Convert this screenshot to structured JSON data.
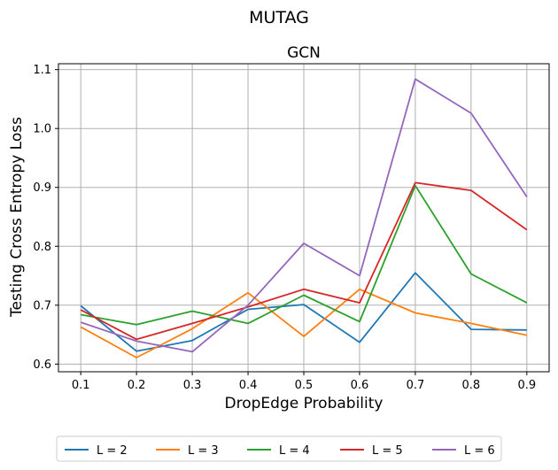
{
  "figure": {
    "suptitle": "MUTAG"
  },
  "chart_data": {
    "type": "line",
    "title": "GCN",
    "xlabel": "DropEdge Probability",
    "ylabel": "Testing Cross Entropy Loss",
    "x": [
      0.1,
      0.2,
      0.3,
      0.4,
      0.5,
      0.6,
      0.7,
      0.8,
      0.9
    ],
    "x_ticks": [
      "0.1",
      "0.2",
      "0.3",
      "0.4",
      "0.5",
      "0.6",
      "0.7",
      "0.8",
      "0.9"
    ],
    "xlim": [
      0.06,
      0.94
    ],
    "ylim": [
      0.587,
      1.11
    ],
    "y_ticks": [
      "0.6",
      "0.7",
      "0.8",
      "0.9",
      "1.0",
      "1.1"
    ],
    "y_tick_values": [
      0.6,
      0.7,
      0.8,
      0.9,
      1.0,
      1.1
    ],
    "grid": true,
    "legend_position": "bottom-center",
    "series": [
      {
        "name": "L = 2",
        "color": "#1f77b4",
        "values": [
          0.699,
          0.622,
          0.64,
          0.693,
          0.701,
          0.637,
          0.755,
          0.659,
          0.658
        ]
      },
      {
        "name": "L = 3",
        "color": "#ff7f0e",
        "values": [
          0.663,
          0.611,
          0.66,
          0.721,
          0.647,
          0.727,
          0.687,
          0.669,
          0.649
        ]
      },
      {
        "name": "L = 4",
        "color": "#2ca02c",
        "values": [
          0.684,
          0.667,
          0.69,
          0.669,
          0.717,
          0.672,
          0.903,
          0.753,
          0.704
        ]
      },
      {
        "name": "L = 5",
        "color": "#d62728",
        "values": [
          0.692,
          0.642,
          0.669,
          0.697,
          0.727,
          0.704,
          0.908,
          0.895,
          0.828
        ]
      },
      {
        "name": "L = 6",
        "color": "#9467bd",
        "values": [
          0.671,
          0.639,
          0.621,
          0.7,
          0.805,
          0.75,
          1.084,
          1.026,
          0.884
        ]
      }
    ]
  }
}
